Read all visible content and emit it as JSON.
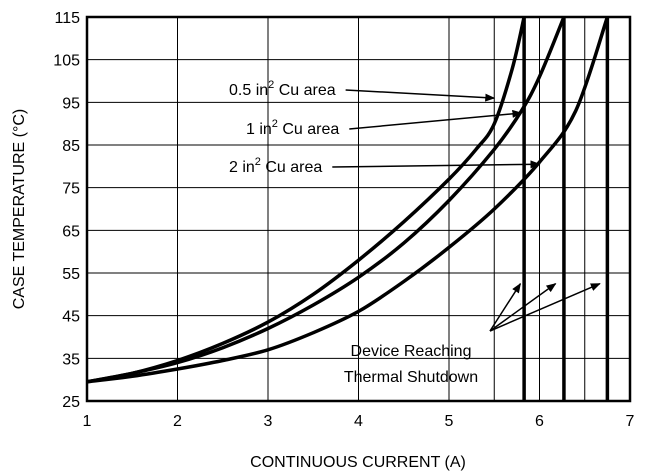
{
  "chart_data": {
    "type": "line",
    "title": "",
    "xlabel": "CONTINUOUS CURRENT (A)",
    "ylabel": "CASE TEMPERATURE (°C)",
    "xlim": [
      1,
      7
    ],
    "ylim": [
      25,
      115
    ],
    "xticks": [
      "1",
      "2",
      "3",
      "4",
      "5",
      "6",
      "7"
    ],
    "yticks": [
      "25",
      "35",
      "45",
      "55",
      "65",
      "75",
      "85",
      "95",
      "105",
      "115"
    ],
    "x_grid": [
      1,
      2,
      3,
      4,
      5,
      5.5,
      6,
      6.5,
      7
    ],
    "y_grid": [
      25,
      35,
      45,
      55,
      65,
      75,
      85,
      95,
      105,
      115
    ],
    "series": [
      {
        "name": "0.5 in² Cu area",
        "shutdown_current": 5.83,
        "points": [
          [
            1,
            29.5
          ],
          [
            1.5,
            31.5
          ],
          [
            2,
            34.5
          ],
          [
            2.5,
            38.5
          ],
          [
            3,
            43.5
          ],
          [
            3.5,
            50
          ],
          [
            4,
            58
          ],
          [
            4.5,
            67
          ],
          [
            5,
            77
          ],
          [
            5.3,
            84
          ],
          [
            5.5,
            90
          ],
          [
            5.7,
            103
          ],
          [
            5.83,
            115
          ]
        ]
      },
      {
        "name": "1 in² Cu area",
        "shutdown_current": 6.27,
        "points": [
          [
            1,
            29.5
          ],
          [
            1.5,
            31.5
          ],
          [
            2,
            34
          ],
          [
            2.5,
            37.5
          ],
          [
            3,
            42
          ],
          [
            3.5,
            47.5
          ],
          [
            4,
            54
          ],
          [
            4.5,
            62
          ],
          [
            5,
            72
          ],
          [
            5.5,
            84
          ],
          [
            5.8,
            93
          ],
          [
            6.0,
            101
          ],
          [
            6.27,
            115
          ]
        ]
      },
      {
        "name": "2 in² Cu area",
        "shutdown_current": 6.75,
        "points": [
          [
            1,
            29.5
          ],
          [
            1.5,
            30.8
          ],
          [
            2,
            32.5
          ],
          [
            2.5,
            34.5
          ],
          [
            3,
            37
          ],
          [
            3.5,
            41
          ],
          [
            4,
            46
          ],
          [
            4.5,
            53
          ],
          [
            5,
            61
          ],
          [
            5.5,
            70
          ],
          [
            6,
            81
          ],
          [
            6.4,
            93
          ],
          [
            6.75,
            115
          ]
        ]
      }
    ],
    "annotations": {
      "label_a": "0.5 in",
      "label_b": "1 in",
      "label_c": "2 in",
      "superscript": "2",
      "suffix": " Cu area",
      "shutdown_line1": "Device Reaching",
      "shutdown_line2": "Thermal Shutdown"
    }
  }
}
